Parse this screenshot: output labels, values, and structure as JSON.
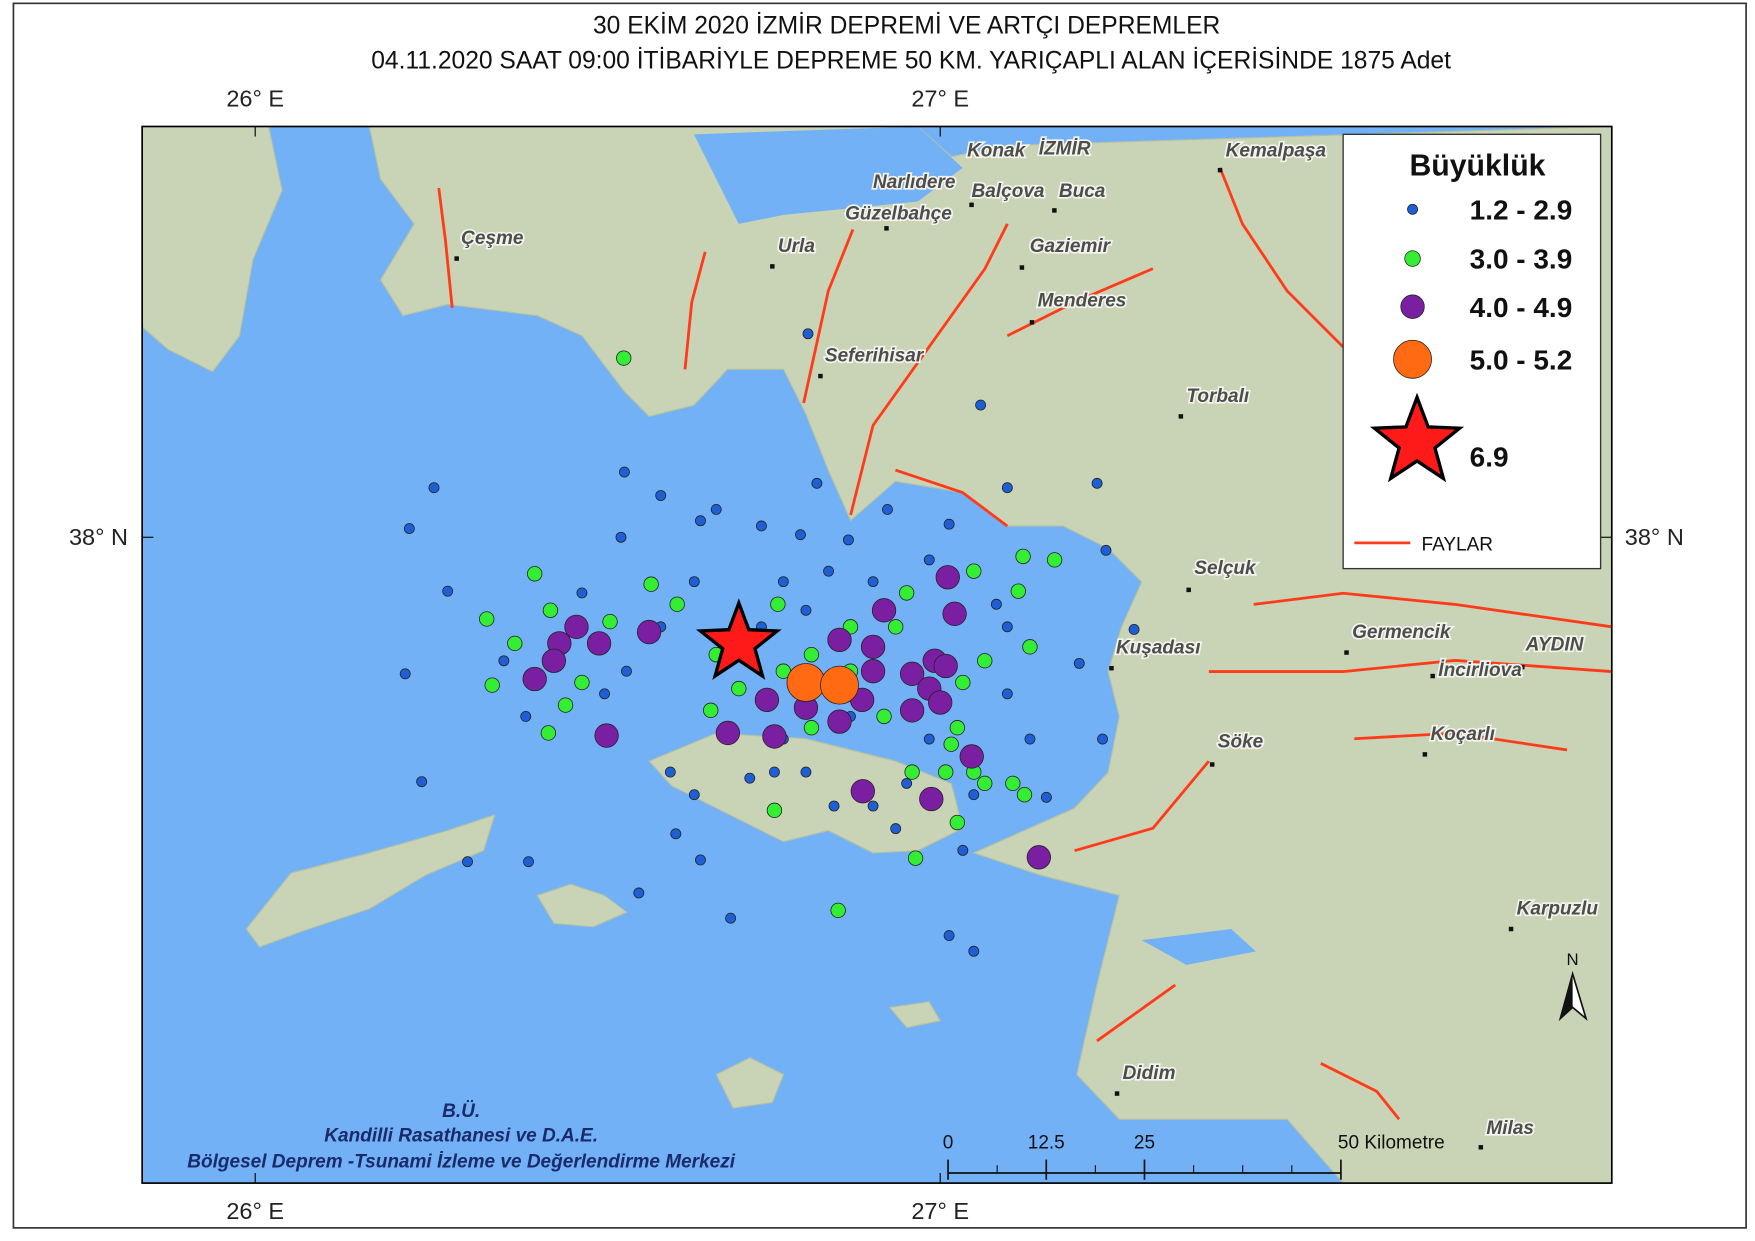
{
  "map": {
    "title": "30 EKİM 2020 İZMİR DEPREMİ VE ARTÇI DEPREMLER",
    "subtitle": "04.11.2020 SAAT 09:00 İTİBARİYLE  DEPREME 50 KM. YARIÇAPLI ALAN İÇERİSİNDE 1875 Adet",
    "lon_ticks": [
      {
        "value": 26,
        "label": "26° E"
      },
      {
        "value": 27,
        "label": "27° E"
      }
    ],
    "lat_ticks": [
      {
        "value": 38,
        "label": "38° N"
      }
    ],
    "legend_title": "Büyüklük",
    "magnitude_classes": [
      {
        "label": "1.2 - 2.9",
        "color": "#1f5fd6"
      },
      {
        "label": "3.0 - 3.9",
        "color": "#33ee33"
      },
      {
        "label": "4.0 - 4.9",
        "color": "#7b1fa2"
      },
      {
        "label": "5.0 - 5.2",
        "color": "#ff6a13"
      }
    ],
    "mainshock": {
      "label": "6.9",
      "lon": 26.706,
      "lat": 37.878,
      "color": "#ff1a1a"
    },
    "faults_label": "FAYLAR",
    "events": [
      {
        "lon": [
          26.261,
          26.225,
          26.281,
          26.219,
          26.243,
          26.31,
          26.399,
          26.539,
          26.592,
          26.534,
          26.65,
          26.673,
          26.739,
          26.796,
          26.807,
          26.82,
          26.866,
          26.923,
          27.013,
          27.059,
          27.098,
          27.229,
          27.242,
          27.283,
          27.203,
          27.237,
          27.155,
          27.049,
          27.033,
          27.013,
          27.049,
          26.694,
          26.56,
          26.65,
          26.614,
          26.606,
          26.641,
          26.722,
          26.758,
          26.804,
          26.845,
          26.935,
          26.902,
          26.69,
          26.641,
          26.592,
          26.542,
          26.51,
          26.395,
          26.363,
          26.477,
          26.771,
          26.837,
          26.902,
          26.984,
          27.082,
          27.098,
          27.131,
          27.098,
          26.739,
          26.804,
          26.869,
          26.771,
          26.984,
          26.951
        ],
        "lat": [
          38.057,
          38.01,
          37.938,
          37.843,
          37.719,
          37.627,
          37.627,
          38.075,
          38.048,
          38.0,
          38.019,
          38.032,
          38.013,
          38.003,
          38.234,
          38.062,
          37.997,
          38.032,
          38.015,
          38.152,
          38.057,
          38.062,
          37.985,
          37.894,
          37.855,
          37.768,
          37.701,
          37.704,
          37.64,
          37.542,
          37.524,
          37.562,
          37.591,
          37.629,
          37.659,
          37.73,
          37.704,
          37.723,
          37.73,
          37.73,
          37.691,
          37.665,
          37.691,
          37.871,
          37.949,
          37.897,
          37.846,
          37.82,
          37.794,
          37.858,
          37.936,
          37.949,
          37.961,
          37.949,
          37.974,
          37.923,
          37.82,
          37.768,
          37.897,
          37.897,
          37.916,
          37.794,
          37.768,
          37.768,
          37.717
        ]
      },
      {
        "lon": [
          26.538,
          26.338,
          26.408,
          26.346,
          26.379,
          26.431,
          26.477,
          26.428,
          26.578,
          26.616,
          26.665,
          26.706,
          26.763,
          26.771,
          26.812,
          26.869,
          26.935,
          26.951,
          27.049,
          27.114,
          27.121,
          27.167,
          27.131,
          27.065,
          27.033,
          27.025,
          27.016,
          27.049,
          27.008,
          26.959,
          27.065,
          27.106,
          27.123,
          27.025,
          26.964,
          26.851,
          26.758,
          26.812,
          26.918,
          26.869,
          26.673,
          26.518,
          26.453
        ],
        "lat": [
          38.206,
          37.906,
          37.958,
          37.83,
          37.878,
          37.916,
          37.833,
          37.775,
          37.946,
          37.923,
          37.801,
          37.826,
          37.923,
          37.846,
          37.865,
          37.897,
          37.897,
          37.936,
          37.961,
          37.938,
          37.978,
          37.974,
          37.874,
          37.858,
          37.833,
          37.781,
          37.762,
          37.73,
          37.73,
          37.73,
          37.717,
          37.717,
          37.704,
          37.672,
          37.631,
          37.571,
          37.686,
          37.781,
          37.794,
          37.846,
          37.865,
          37.903,
          37.807
        ]
      },
      {
        "lon": [
          27.011,
          27.021,
          26.918,
          26.853,
          26.902,
          26.992,
          27.008,
          26.959,
          26.902,
          26.984,
          26.886,
          26.959,
          27.0,
          26.853,
          26.804,
          26.747,
          26.69,
          26.758,
          26.575,
          26.502,
          26.469,
          26.444,
          26.436,
          26.408,
          26.513,
          27.046,
          26.987,
          26.887,
          27.144
        ],
        "lat": [
          37.954,
          37.912,
          37.916,
          37.882,
          37.874,
          37.858,
          37.852,
          37.843,
          37.846,
          37.826,
          37.813,
          37.801,
          37.81,
          37.788,
          37.804,
          37.813,
          37.775,
          37.771,
          37.891,
          37.878,
          37.897,
          37.878,
          37.858,
          37.837,
          37.772,
          37.748,
          37.699,
          37.708,
          37.632
        ]
      },
      {
        "lon": [
          26.804,
          26.853
        ],
        "lat": [
          37.833,
          37.83
        ]
      }
    ],
    "places": [
      "Konak",
      "İZMİR",
      "Kemalpaşa",
      "Narlıdere",
      "Balçova",
      "Buca",
      "Güzelbahçe",
      "Çeşme",
      "Urla",
      "Gaziemir",
      "Menderes",
      "Seferihisar",
      "Torbalı",
      "Selçuk",
      "Kuşadası",
      "Germencik",
      "AYDIN",
      "İncirliova",
      "Söke",
      "Koçarlı",
      "Karpuzlu",
      "Didim",
      "Milas"
    ],
    "scale_bar_ticks": [
      0,
      12.5,
      25,
      {
        "value": 50,
        "label": "50 Kilometre"
      }
    ],
    "north_label": "N",
    "credits": [
      "B.Ü.",
      "Kandilli Rasathanesi ve D.A.E.",
      "Bölgesel Deprem -Tsunami İzleme ve Değerlendirme Merkezi"
    ]
  }
}
